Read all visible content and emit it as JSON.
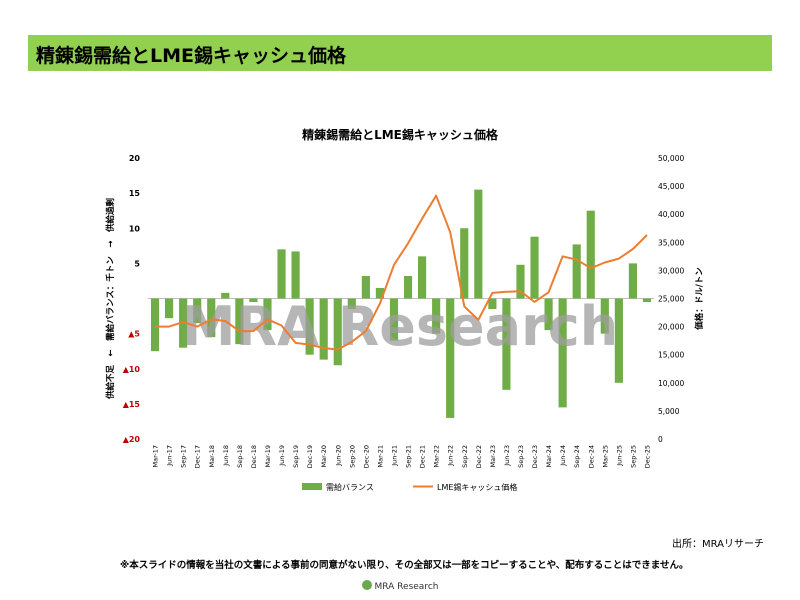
{
  "slide_title": "精錬錫需給とLME錫キャッシュ価格",
  "source": "出所：MRAリサーチ",
  "notice": "※本スライドの情報を当社の文書による事前の同意がない限り、その全部又は一部をコピーすることや、配布することはできません。",
  "watermark": "MRA Research",
  "footer_logo": "MRA Research",
  "colors": {
    "header": "#92d050",
    "bar": "#70ad47",
    "line": "#ed7d31",
    "negative_tick": "#c00000"
  },
  "chart_data": {
    "type": "bar+line",
    "title": "精錬錫需給とLME錫キャッシュ価格",
    "ylabel_left": "供給不足　←　需給バランス：千トン　→　供給過剰",
    "ylabel_right": "価格：ドル/トン",
    "ylim_left": [
      -20,
      20
    ],
    "ylim_right": [
      0,
      50000
    ],
    "left_ticks": [
      "20",
      "15",
      "10",
      "5",
      "",
      "▲5",
      "▲10",
      "▲15",
      "▲20"
    ],
    "right_ticks": [
      "50,000",
      "45,000",
      "40,000",
      "35,000",
      "30,000",
      "25,000",
      "20,000",
      "15,000",
      "10,000",
      "5,000",
      "0"
    ],
    "categories": [
      "Mar-17",
      "Jun-17",
      "Sep-17",
      "Dec-17",
      "Mar-18",
      "Jun-18",
      "Sep-18",
      "Dec-18",
      "Mar-19",
      "Jun-19",
      "Sep-19",
      "Dec-19",
      "Mar-20",
      "Jun-20",
      "Sep-20",
      "Dec-20",
      "Mar-21",
      "Jun-21",
      "Sep-21",
      "Dec-21",
      "Mar-22",
      "Jun-22",
      "Sep-22",
      "Dec-22",
      "Mar-23",
      "Jun-23",
      "Sep-23",
      "Dec-23",
      "Mar-24",
      "Jun-24",
      "Sep-24",
      "Dec-24",
      "Mar-25",
      "Jun-25",
      "Sep-25",
      "Dec-25"
    ],
    "series": [
      {
        "name": "需給バランス",
        "type": "bar",
        "axis": "left",
        "values": [
          -7.5,
          -2.8,
          -7,
          -3.5,
          -5.5,
          0.8,
          -6.5,
          -0.5,
          -4.5,
          7,
          6.7,
          -8,
          -8.7,
          -9.5,
          -1.5,
          3.2,
          1.5,
          -6,
          3.2,
          6,
          -5,
          -17,
          10,
          15.5,
          -1.5,
          -13,
          4.8,
          8.8,
          -4.5,
          -15.5,
          7.7,
          12.5,
          -5,
          -12,
          5,
          -0.5
        ]
      },
      {
        "name": "LME錫キャッシュ価格",
        "type": "line",
        "axis": "right",
        "values": [
          20000,
          20000,
          20800,
          20000,
          21300,
          21000,
          19200,
          19200,
          21300,
          20200,
          17100,
          16800,
          16200,
          15900,
          17300,
          19200,
          24100,
          31000,
          34800,
          39200,
          43300,
          36800,
          23600,
          21200,
          26000,
          26200,
          26300,
          24400,
          26100,
          32500,
          31900,
          30400,
          31400,
          32100,
          33800,
          36300
        ]
      }
    ],
    "legend": [
      "需給バランス",
      "LME錫キャッシュ価格"
    ],
    "legend_position": "bottom"
  }
}
